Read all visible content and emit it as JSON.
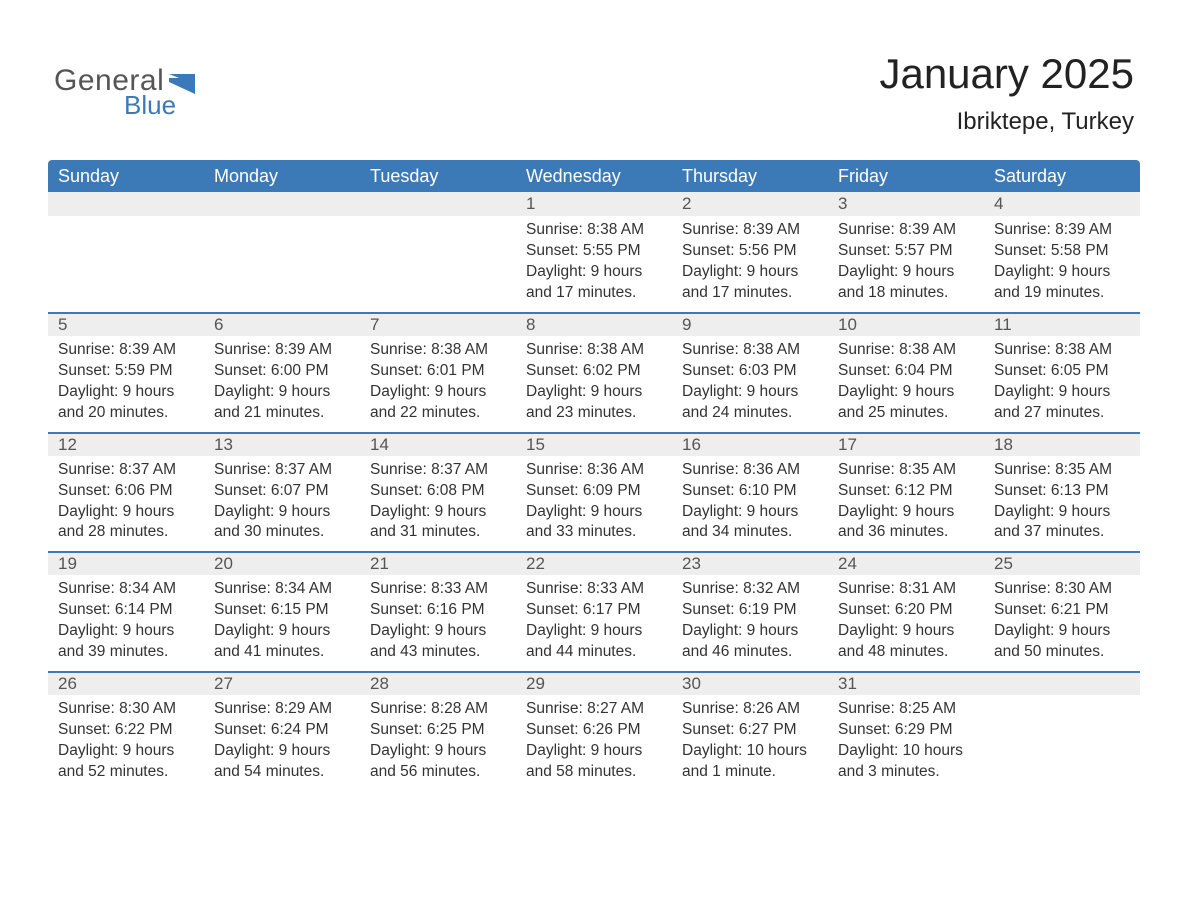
{
  "brand": {
    "word1": "General",
    "word2": "Blue"
  },
  "title": "January 2025",
  "subtitle": "Ibriktepe, Turkey",
  "colors": {
    "header_bg": "#3b79b7",
    "header_text": "#ffffff",
    "daynum_bg": "#eeeeee",
    "daynum_border": "#3b79b7",
    "page_bg": "#ffffff",
    "body_text": "#333333",
    "logo_text1": "#555555",
    "logo_text2": "#3b79b7"
  },
  "daysOfWeek": [
    "Sunday",
    "Monday",
    "Tuesday",
    "Wednesday",
    "Thursday",
    "Friday",
    "Saturday"
  ],
  "labels": {
    "sunrise": "Sunrise:",
    "sunset": "Sunset:",
    "daylight": "Daylight:"
  },
  "weeks": [
    [
      null,
      null,
      null,
      {
        "n": "1",
        "sunrise": "8:38 AM",
        "sunset": "5:55 PM",
        "daylight": "9 hours and 17 minutes."
      },
      {
        "n": "2",
        "sunrise": "8:39 AM",
        "sunset": "5:56 PM",
        "daylight": "9 hours and 17 minutes."
      },
      {
        "n": "3",
        "sunrise": "8:39 AM",
        "sunset": "5:57 PM",
        "daylight": "9 hours and 18 minutes."
      },
      {
        "n": "4",
        "sunrise": "8:39 AM",
        "sunset": "5:58 PM",
        "daylight": "9 hours and 19 minutes."
      }
    ],
    [
      {
        "n": "5",
        "sunrise": "8:39 AM",
        "sunset": "5:59 PM",
        "daylight": "9 hours and 20 minutes."
      },
      {
        "n": "6",
        "sunrise": "8:39 AM",
        "sunset": "6:00 PM",
        "daylight": "9 hours and 21 minutes."
      },
      {
        "n": "7",
        "sunrise": "8:38 AM",
        "sunset": "6:01 PM",
        "daylight": "9 hours and 22 minutes."
      },
      {
        "n": "8",
        "sunrise": "8:38 AM",
        "sunset": "6:02 PM",
        "daylight": "9 hours and 23 minutes."
      },
      {
        "n": "9",
        "sunrise": "8:38 AM",
        "sunset": "6:03 PM",
        "daylight": "9 hours and 24 minutes."
      },
      {
        "n": "10",
        "sunrise": "8:38 AM",
        "sunset": "6:04 PM",
        "daylight": "9 hours and 25 minutes."
      },
      {
        "n": "11",
        "sunrise": "8:38 AM",
        "sunset": "6:05 PM",
        "daylight": "9 hours and 27 minutes."
      }
    ],
    [
      {
        "n": "12",
        "sunrise": "8:37 AM",
        "sunset": "6:06 PM",
        "daylight": "9 hours and 28 minutes."
      },
      {
        "n": "13",
        "sunrise": "8:37 AM",
        "sunset": "6:07 PM",
        "daylight": "9 hours and 30 minutes."
      },
      {
        "n": "14",
        "sunrise": "8:37 AM",
        "sunset": "6:08 PM",
        "daylight": "9 hours and 31 minutes."
      },
      {
        "n": "15",
        "sunrise": "8:36 AM",
        "sunset": "6:09 PM",
        "daylight": "9 hours and 33 minutes."
      },
      {
        "n": "16",
        "sunrise": "8:36 AM",
        "sunset": "6:10 PM",
        "daylight": "9 hours and 34 minutes."
      },
      {
        "n": "17",
        "sunrise": "8:35 AM",
        "sunset": "6:12 PM",
        "daylight": "9 hours and 36 minutes."
      },
      {
        "n": "18",
        "sunrise": "8:35 AM",
        "sunset": "6:13 PM",
        "daylight": "9 hours and 37 minutes."
      }
    ],
    [
      {
        "n": "19",
        "sunrise": "8:34 AM",
        "sunset": "6:14 PM",
        "daylight": "9 hours and 39 minutes."
      },
      {
        "n": "20",
        "sunrise": "8:34 AM",
        "sunset": "6:15 PM",
        "daylight": "9 hours and 41 minutes."
      },
      {
        "n": "21",
        "sunrise": "8:33 AM",
        "sunset": "6:16 PM",
        "daylight": "9 hours and 43 minutes."
      },
      {
        "n": "22",
        "sunrise": "8:33 AM",
        "sunset": "6:17 PM",
        "daylight": "9 hours and 44 minutes."
      },
      {
        "n": "23",
        "sunrise": "8:32 AM",
        "sunset": "6:19 PM",
        "daylight": "9 hours and 46 minutes."
      },
      {
        "n": "24",
        "sunrise": "8:31 AM",
        "sunset": "6:20 PM",
        "daylight": "9 hours and 48 minutes."
      },
      {
        "n": "25",
        "sunrise": "8:30 AM",
        "sunset": "6:21 PM",
        "daylight": "9 hours and 50 minutes."
      }
    ],
    [
      {
        "n": "26",
        "sunrise": "8:30 AM",
        "sunset": "6:22 PM",
        "daylight": "9 hours and 52 minutes."
      },
      {
        "n": "27",
        "sunrise": "8:29 AM",
        "sunset": "6:24 PM",
        "daylight": "9 hours and 54 minutes."
      },
      {
        "n": "28",
        "sunrise": "8:28 AM",
        "sunset": "6:25 PM",
        "daylight": "9 hours and 56 minutes."
      },
      {
        "n": "29",
        "sunrise": "8:27 AM",
        "sunset": "6:26 PM",
        "daylight": "9 hours and 58 minutes."
      },
      {
        "n": "30",
        "sunrise": "8:26 AM",
        "sunset": "6:27 PM",
        "daylight": "10 hours and 1 minute."
      },
      {
        "n": "31",
        "sunrise": "8:25 AM",
        "sunset": "6:29 PM",
        "daylight": "10 hours and 3 minutes."
      },
      null
    ]
  ]
}
